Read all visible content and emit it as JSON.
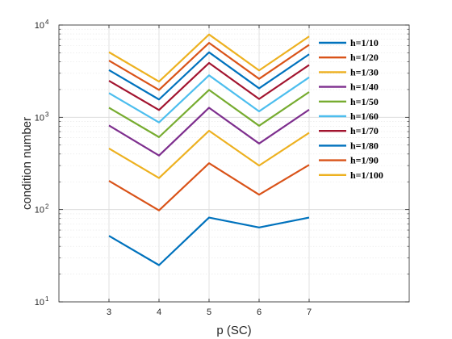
{
  "chart_data": {
    "type": "line",
    "title": "",
    "xlabel": "p (SC)",
    "ylabel": "condition number",
    "yscale": "log",
    "xlim": [
      2,
      9
    ],
    "ylim": [
      10,
      10000
    ],
    "grid": true,
    "legend_position": "top-right",
    "x": [
      3,
      4,
      5,
      6,
      7
    ],
    "x_tick_labels": [
      "3",
      "4",
      "5",
      "6",
      "7"
    ],
    "y_tick_labels": [
      {
        "base": "10",
        "exp": "1"
      },
      {
        "base": "10",
        "exp": "2"
      },
      {
        "base": "10",
        "exp": "3"
      },
      {
        "base": "10",
        "exp": "4"
      }
    ],
    "series": [
      {
        "name": "h=1/10",
        "color": "#0072BD",
        "values": [
          52,
          25,
          82,
          64,
          82
        ]
      },
      {
        "name": "h=1/20",
        "color": "#D95319",
        "values": [
          205,
          98,
          318,
          145,
          305
        ]
      },
      {
        "name": "h=1/30",
        "color": "#EDB120",
        "values": [
          460,
          220,
          715,
          300,
          680
        ]
      },
      {
        "name": "h=1/40",
        "color": "#7E2F8E",
        "values": [
          815,
          385,
          1270,
          520,
          1210
        ]
      },
      {
        "name": "h=1/50",
        "color": "#77AC30",
        "values": [
          1270,
          610,
          1980,
          810,
          1880
        ]
      },
      {
        "name": "h=1/60",
        "color": "#4DBEEE",
        "values": [
          1830,
          880,
          2850,
          1160,
          2710
        ]
      },
      {
        "name": "h=1/70",
        "color": "#A2142F",
        "values": [
          2490,
          1200,
          3880,
          1580,
          3690
        ]
      },
      {
        "name": "h=1/80",
        "color": "#0072BD",
        "values": [
          3250,
          1560,
          5060,
          2060,
          4820
        ]
      },
      {
        "name": "h=1/90",
        "color": "#D95319",
        "values": [
          4120,
          1980,
          6400,
          2610,
          6100
        ]
      },
      {
        "name": "h=1/100",
        "color": "#EDB120",
        "values": [
          5080,
          2440,
          7900,
          3220,
          7530
        ]
      }
    ]
  }
}
